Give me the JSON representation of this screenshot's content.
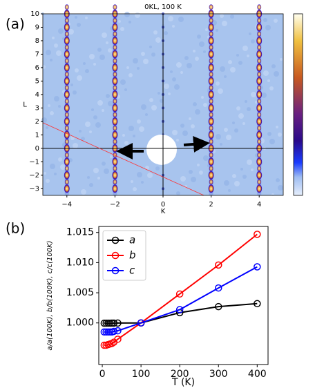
{
  "chart_data": [
    {
      "type": "image",
      "panel_label": "(a)",
      "title": "0KL, 100 K",
      "x_label": "K",
      "y_label": "L",
      "xlim": [
        -5,
        5
      ],
      "ylim": [
        -3.5,
        10
      ],
      "xticks": [
        {
          "value": -4,
          "label": "−4"
        },
        {
          "value": -2,
          "label": "−2"
        },
        0,
        2,
        4
      ],
      "yticks": [
        {
          "value": -3,
          "label": "−3"
        },
        {
          "value": -2,
          "label": "−2"
        },
        {
          "value": -1,
          "label": "−1"
        },
        0,
        1,
        2,
        3,
        4,
        5,
        6,
        7,
        8,
        9,
        10
      ]
    },
    {
      "type": "line",
      "panel_label": "(b)",
      "x_label": "T (K)",
      "y_label": "a/a(100K), b/b(100K), c/c(100K)",
      "x": [
        5,
        10,
        15,
        20,
        25,
        30,
        40,
        100,
        200,
        300,
        400
      ],
      "series": [
        {
          "name": "a",
          "color": "#000000",
          "values": [
            0.99995,
            0.99995,
            0.99996,
            0.99996,
            0.99997,
            0.99997,
            0.99998,
            1.0,
            1.0017,
            1.0027,
            1.0032
          ]
        },
        {
          "name": "b",
          "color": "#ff0000",
          "values": [
            0.9963,
            0.9963,
            0.9964,
            0.9965,
            0.9966,
            0.9968,
            0.9973,
            1.0,
            1.0048,
            1.0096,
            1.0147
          ]
        },
        {
          "name": "c",
          "color": "#0000ff",
          "values": [
            0.9985,
            0.9985,
            0.9985,
            0.9985,
            0.9985,
            0.9986,
            0.9987,
            1.0,
            1.0022,
            1.0058,
            1.0093
          ]
        }
      ],
      "xlim": [
        -9,
        428
      ],
      "ylim": [
        0.9931,
        1.016
      ],
      "xticks": [
        0,
        100,
        200,
        300,
        400
      ],
      "yticks": [
        {
          "value": 1.0,
          "label": "1.000"
        },
        {
          "value": 1.005,
          "label": "1.005"
        },
        {
          "value": 1.01,
          "label": "1.010"
        },
        {
          "value": 1.015,
          "label": "1.015"
        }
      ],
      "legend": "upper left"
    }
  ]
}
